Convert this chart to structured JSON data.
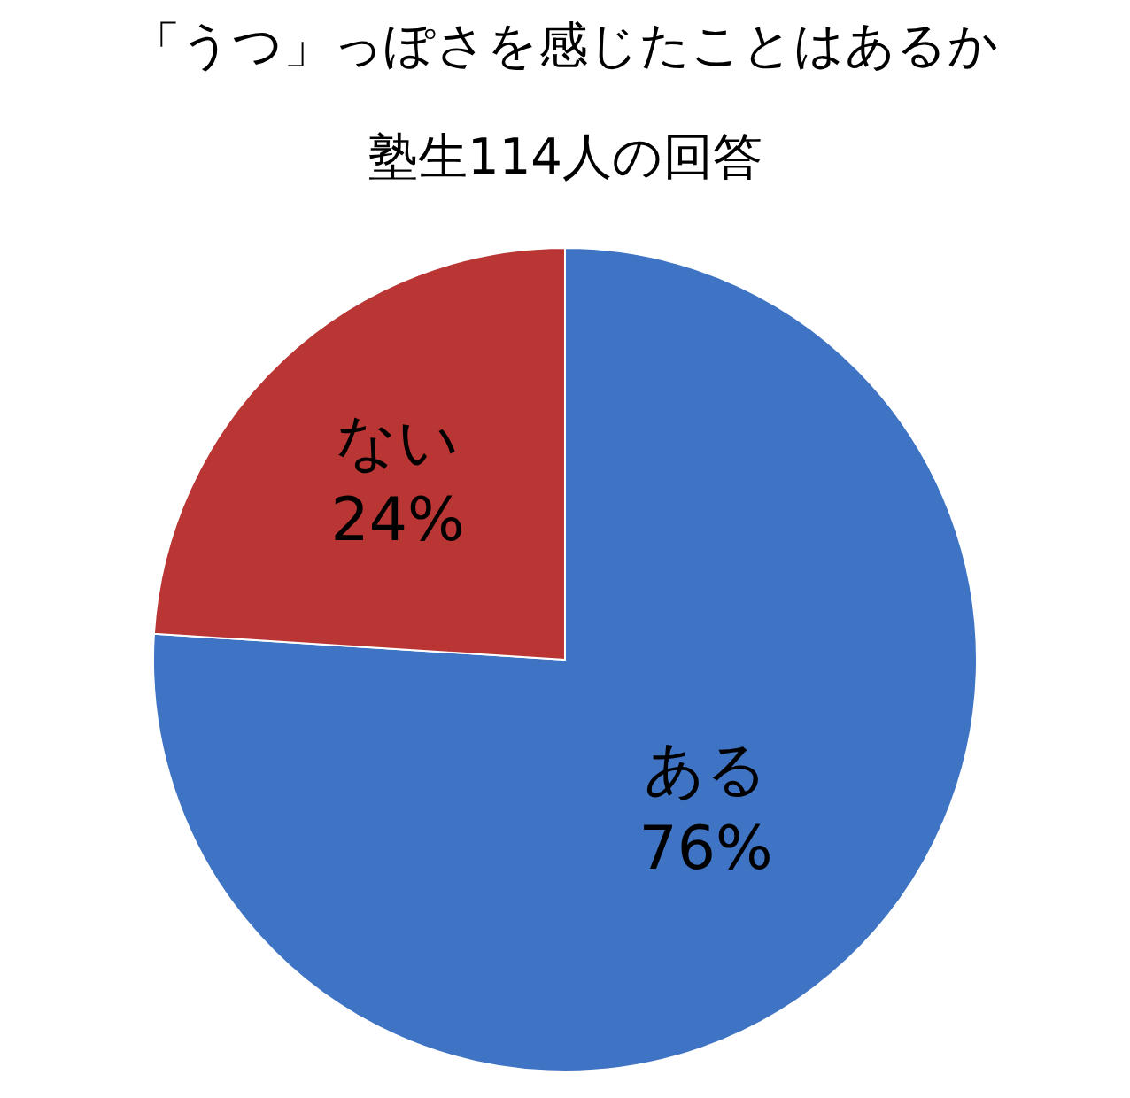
{
  "chart_data": {
    "type": "pie",
    "title": "「うつ」っぽさを感じたことはあるか",
    "subtitle": "塾生114人の回答",
    "categories": [
      "ある",
      "ない"
    ],
    "values": [
      76,
      24
    ],
    "value_labels": [
      "76%",
      "24%"
    ],
    "colors": [
      "#3f74c4",
      "#b93634"
    ],
    "legend": false
  }
}
